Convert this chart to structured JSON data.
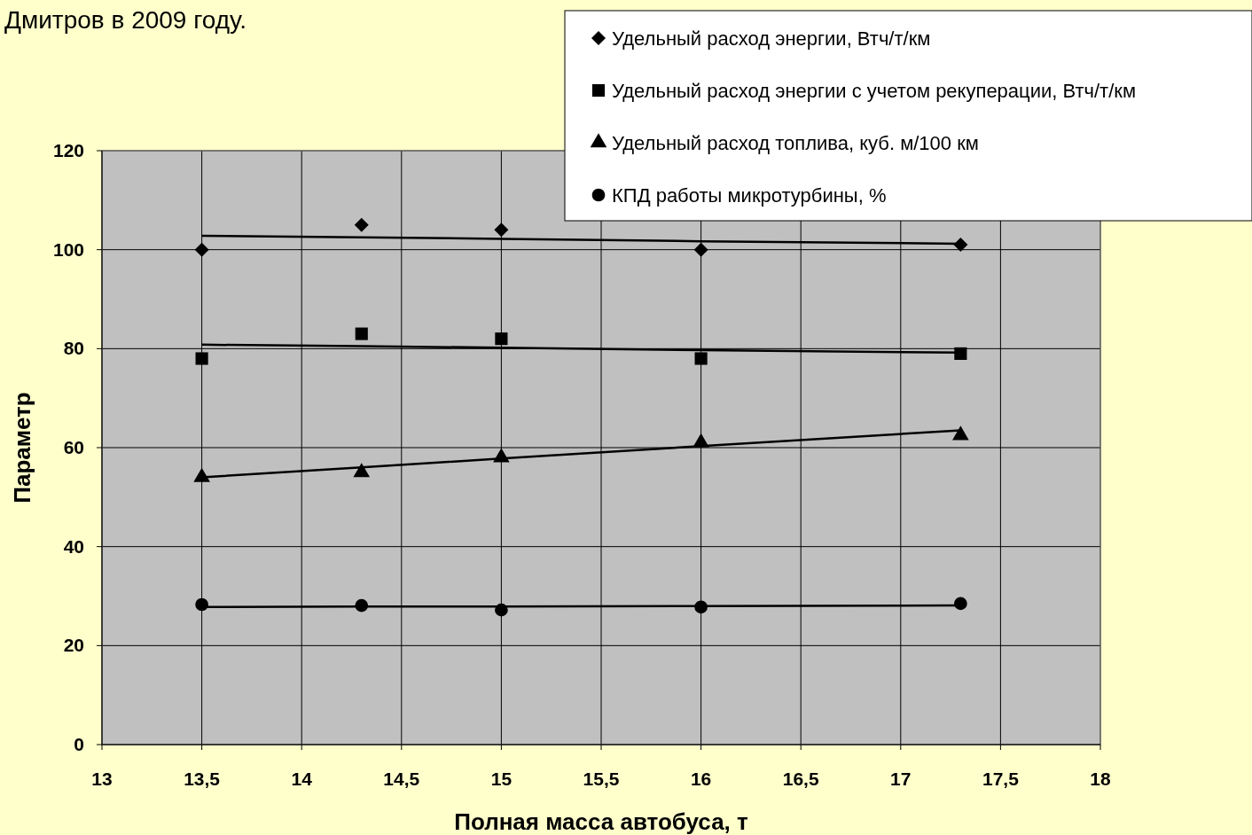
{
  "chart_data": {
    "type": "scatter",
    "title": "Дмитров в 2009 году.",
    "xlabel": "Полная масса автобуса, т",
    "ylabel": "Параметр",
    "xlim": [
      13,
      18
    ],
    "xticks": [
      13,
      {
        "value": 13.5,
        "label": "13,5"
      },
      14,
      {
        "value": 14.5,
        "label": "14,5"
      },
      15,
      {
        "value": 15.5,
        "label": "15,5"
      },
      16,
      {
        "value": 16.5,
        "label": "16,5"
      },
      17,
      {
        "value": 17.5,
        "label": "17,5"
      },
      18
    ],
    "ylim": [
      0,
      120
    ],
    "yticks": [
      0,
      20,
      40,
      60,
      80,
      100,
      120
    ],
    "grid": true,
    "legend": "top right",
    "x": [
      13.5,
      14.3,
      15,
      16,
      17.3
    ],
    "series": [
      {
        "name": "Удельный расход энергии, Втч/т/км",
        "color": "#000000",
        "marker": "diamond",
        "values": [
          100,
          105,
          104,
          100,
          101
        ]
      },
      {
        "name": "Удельный расход энергии с учетом рекуперации, Втч/т/км",
        "color": "#000000",
        "marker": "square",
        "values": [
          78,
          83,
          82,
          78,
          79
        ]
      },
      {
        "name": "Удельный расход топлива, куб. м/100 км",
        "color": "#000000",
        "marker": "triangle",
        "values": [
          54,
          55,
          58,
          61,
          62.5
        ]
      },
      {
        "name": "КПД работы микротурбины, %",
        "color": "#000000",
        "marker": "circle",
        "values": [
          28.3,
          28.1,
          27.2,
          27.8,
          28.5
        ]
      },
      {
        "type": "line",
        "color": "#000000",
        "values": [
          102.8,
          102.5,
          102.2,
          101.7,
          101.2
        ]
      },
      {
        "type": "line",
        "color": "#000000",
        "values": [
          80.8,
          80.5,
          80.2,
          79.7,
          79.2
        ]
      },
      {
        "type": "line",
        "color": "#000000",
        "values": [
          54,
          56,
          57.8,
          60.3,
          63.5
        ]
      },
      {
        "type": "line",
        "color": "#000000",
        "values": [
          27.8,
          27.9,
          27.9,
          28,
          28.1
        ]
      }
    ]
  }
}
